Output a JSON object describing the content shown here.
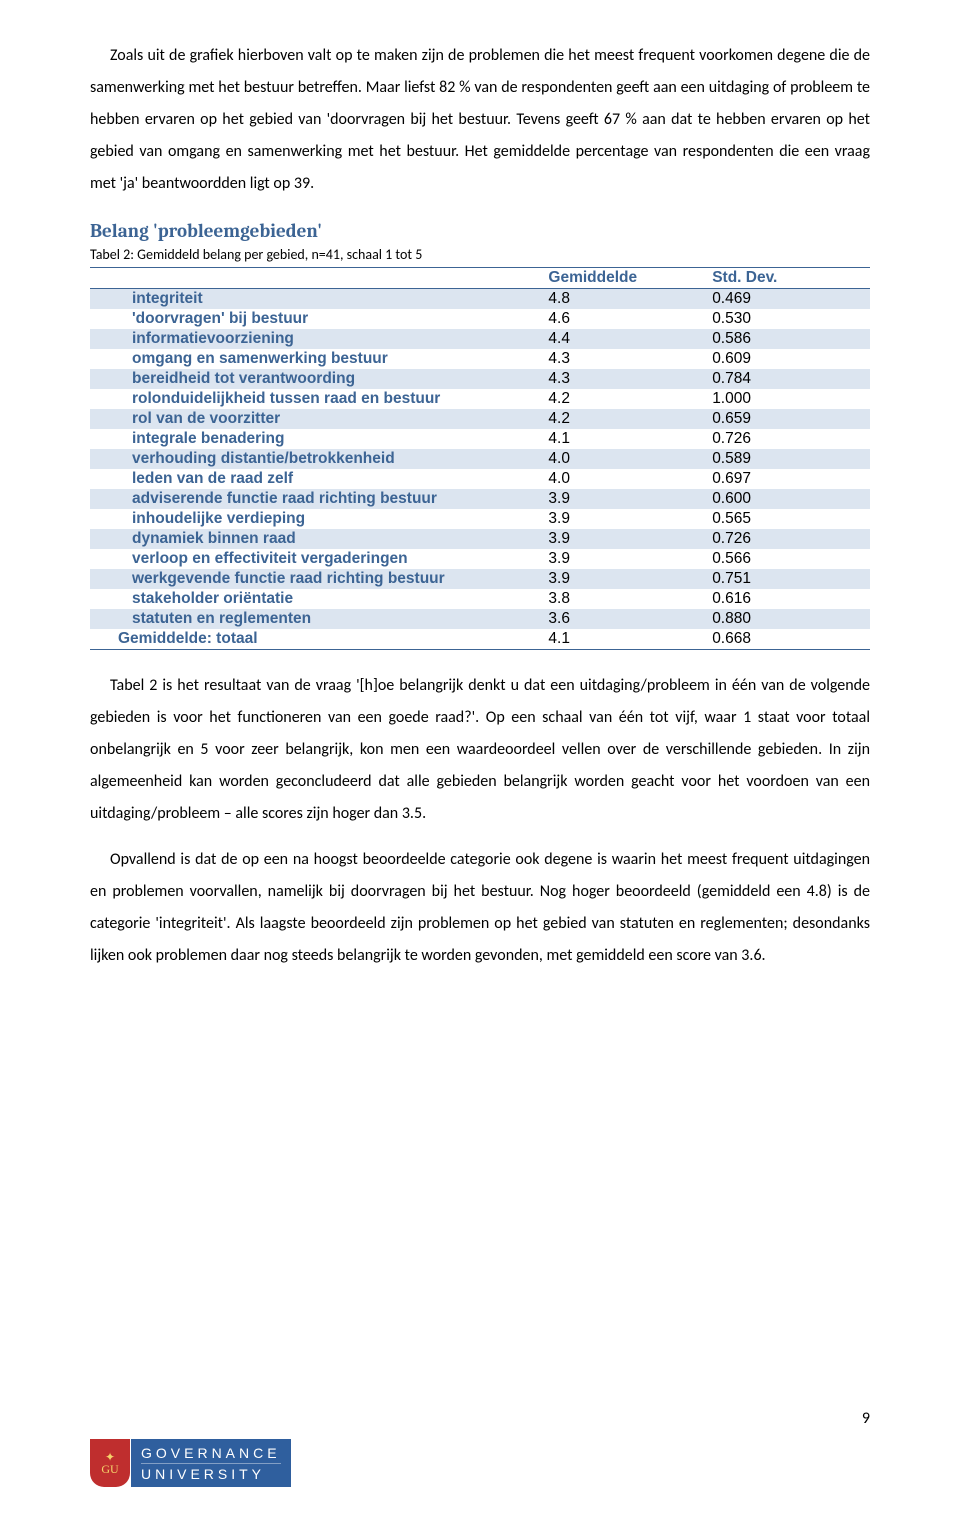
{
  "paragraphs": {
    "p1": "Zoals uit de grafiek hierboven valt op te maken zijn de problemen die het meest frequent voorkomen degene die de samenwerking met het bestuur betreffen. Maar liefst 82 % van de respondenten geeft aan een uitdaging of probleem te hebben ervaren op het gebied van 'doorvragen bij het bestuur. Tevens geeft 67 % aan dat te hebben ervaren op het gebied van omgang en samenwerking met het bestuur. Het gemiddelde percentage van respondenten die een vraag met 'ja' beantwoordden ligt op 39.",
    "p2": "Tabel 2 is het resultaat van de vraag '[h]oe belangrijk denkt u dat een uitdaging/probleem in één van de volgende gebieden is voor het functioneren van een goede raad?'. Op een schaal van één tot vijf, waar 1 staat voor totaal onbelangrijk en 5 voor zeer belangrijk, kon men een waardeoordeel vellen over de verschillende gebieden. In zijn algemeenheid kan worden geconcludeerd dat alle gebieden belangrijk worden geacht voor het voordoen van een uitdaging/probleem – alle scores zijn hoger dan 3.5.",
    "p3": "Opvallend is dat de op een na hoogst beoordeelde categorie ook degene is waarin het meest frequent uitdagingen en problemen voorvallen, namelijk bij doorvragen bij het bestuur. Nog hoger beoordeeld (gemiddeld een 4.8) is de categorie 'integriteit'. Als laagste beoordeeld zijn problemen op het gebied van statuten en reglementen; desondanks lijken ook problemen daar nog steeds belangrijk te worden gevonden, met gemiddeld een score van 3.6."
  },
  "section": {
    "title": "Belang 'probleemgebieden'",
    "caption": "Tabel 2: Gemiddeld belang per gebied, n=41, schaal 1 tot 5"
  },
  "table": {
    "col_gem": "Gemiddelde",
    "col_std": "Std. Dev.",
    "rows": [
      {
        "label": "integriteit",
        "gem": "4.8",
        "std": "0.469",
        "band": true
      },
      {
        "label": "'doorvragen' bij bestuur",
        "gem": "4.6",
        "std": "0.530",
        "band": false
      },
      {
        "label": "informatievoorziening",
        "gem": "4.4",
        "std": "0.586",
        "band": true
      },
      {
        "label": "omgang en samenwerking bestuur",
        "gem": "4.3",
        "std": "0.609",
        "band": false
      },
      {
        "label": "bereidheid tot verantwoording",
        "gem": "4.3",
        "std": "0.784",
        "band": true
      },
      {
        "label": "rolonduidelijkheid tussen raad en bestuur",
        "gem": "4.2",
        "std": "1.000",
        "band": false
      },
      {
        "label": "rol van de voorzitter",
        "gem": "4.2",
        "std": "0.659",
        "band": true
      },
      {
        "label": "integrale benadering",
        "gem": "4.1",
        "std": "0.726",
        "band": false
      },
      {
        "label": "verhouding distantie/betrokkenheid",
        "gem": "4.0",
        "std": "0.589",
        "band": true
      },
      {
        "label": "leden van de raad zelf",
        "gem": "4.0",
        "std": "0.697",
        "band": false
      },
      {
        "label": "adviserende functie raad richting bestuur",
        "gem": "3.9",
        "std": "0.600",
        "band": true
      },
      {
        "label": "inhoudelijke verdieping",
        "gem": "3.9",
        "std": "0.565",
        "band": false
      },
      {
        "label": "dynamiek binnen raad",
        "gem": "3.9",
        "std": "0.726",
        "band": true
      },
      {
        "label": "verloop en effectiviteit vergaderingen",
        "gem": "3.9",
        "std": "0.566",
        "band": false
      },
      {
        "label": "werkgevende functie raad richting bestuur",
        "gem": "3.9",
        "std": "0.751",
        "band": true
      },
      {
        "label": "stakeholder oriëntatie",
        "gem": "3.8",
        "std": "0.616",
        "band": false
      },
      {
        "label": "statuten en reglementen",
        "gem": "3.6",
        "std": "0.880",
        "band": true
      }
    ],
    "total": {
      "label": "Gemiddelde: totaal",
      "gem": "4.1",
      "std": "0.668"
    }
  },
  "footer": {
    "page_num": "9",
    "brand1": "GOVERNANCE",
    "brand2": "UNIVERSITY"
  },
  "colors": {
    "heading": "#3c6494",
    "band": "#dce5f0",
    "shield": "#bf2e2e",
    "brand_bg": "#2f5f9e",
    "shield_gold": "#f5d36a"
  }
}
